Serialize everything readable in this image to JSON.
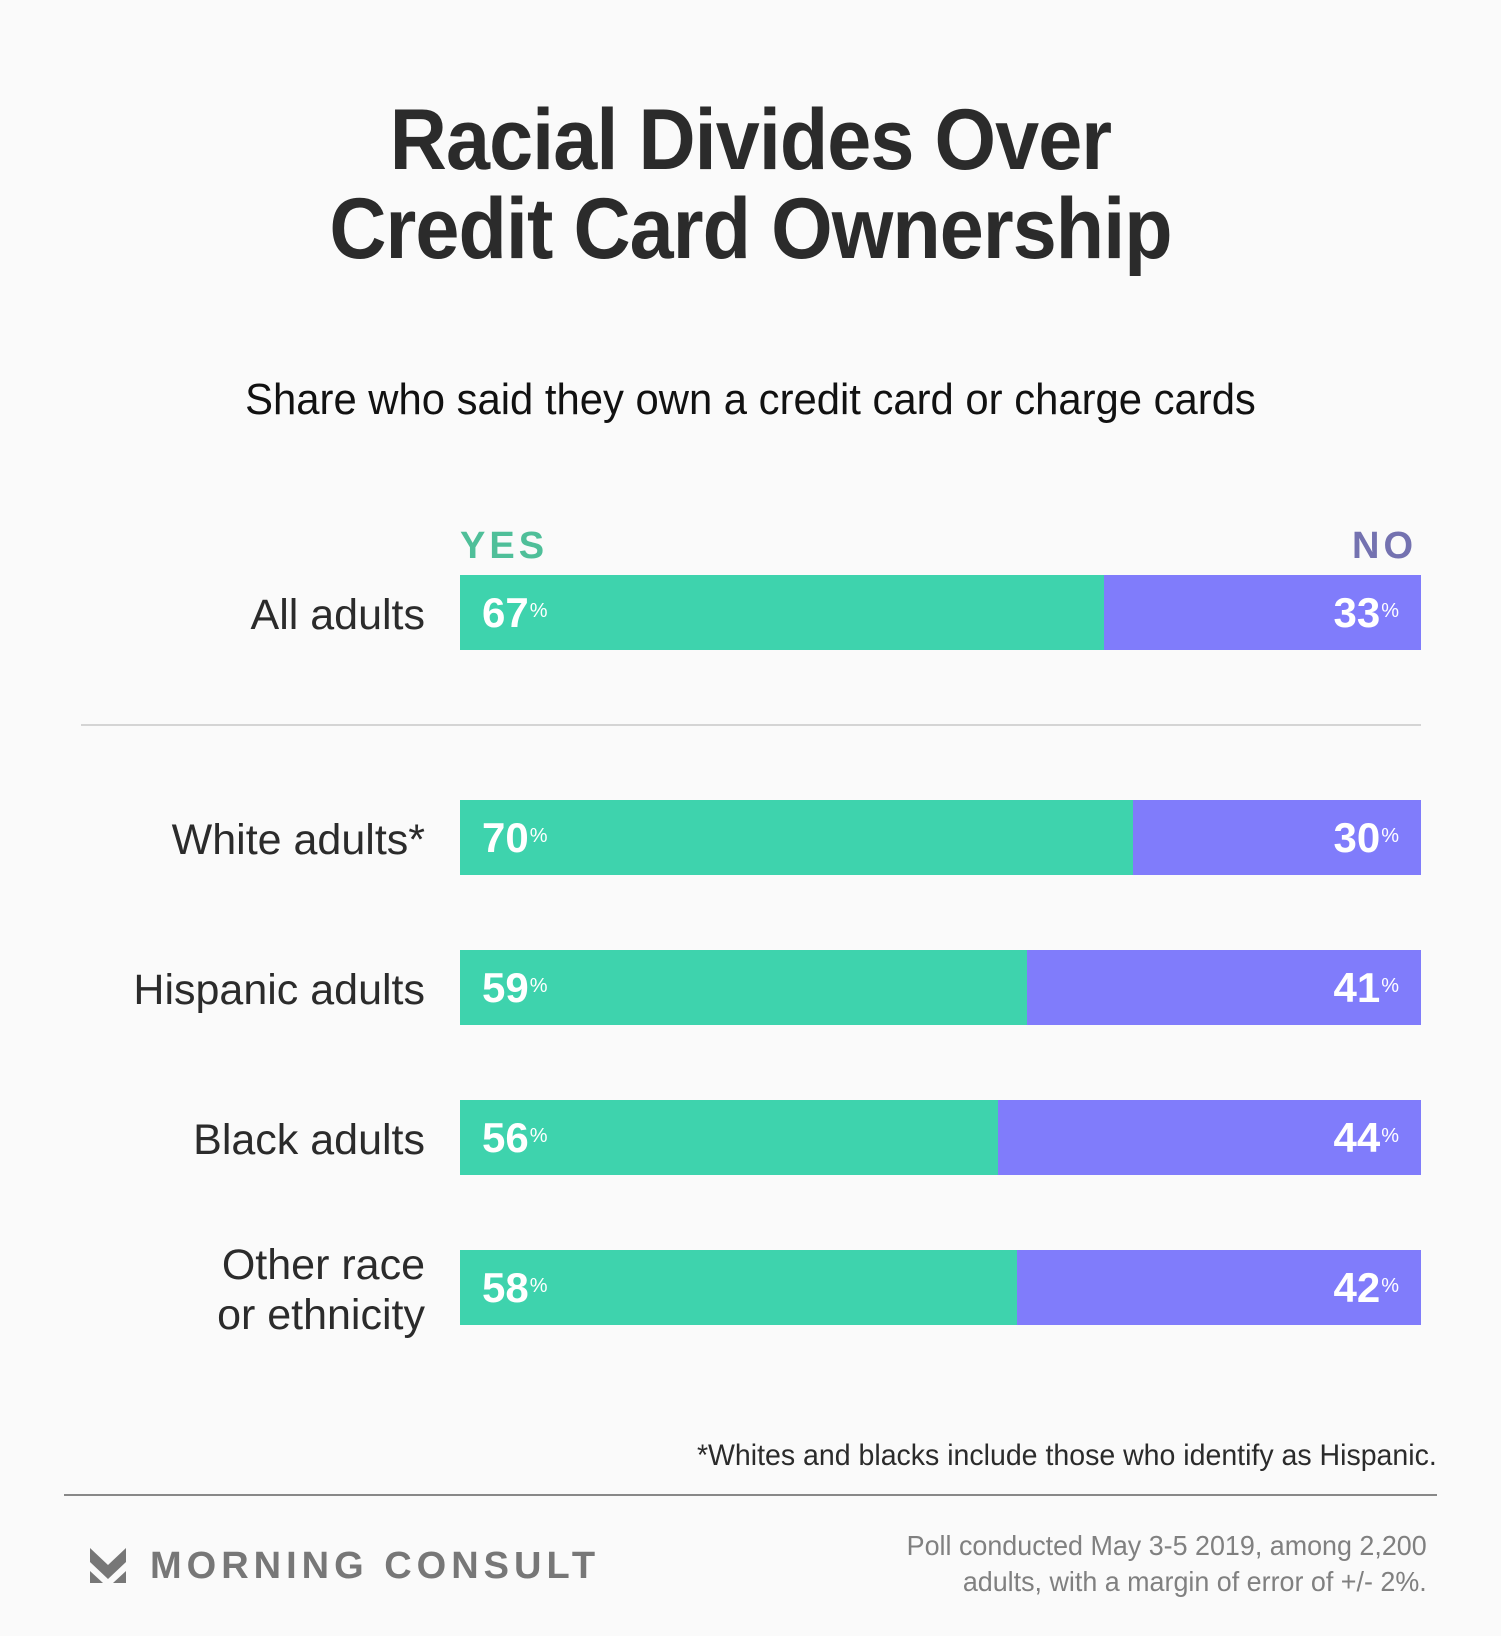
{
  "header": {
    "title_lines": [
      "Racial Divides Over",
      "Credit Card Ownership"
    ],
    "subtitle": "Share who said they own a credit card or charge cards"
  },
  "legend": {
    "yes_label": "YES",
    "no_label": "NO"
  },
  "colors": {
    "yes": "#3ed3ad",
    "no": "#807cfb",
    "yes_label": "#4fbf99",
    "no_label": "#7472b0"
  },
  "chart_data": {
    "type": "bar",
    "orientation": "horizontal",
    "stacked": true,
    "title": "Racial Divides Over Credit Card Ownership",
    "subtitle": "Share who said they own a credit card or charge cards",
    "categories": [
      "All adults",
      "White adults*",
      "Hispanic adults",
      "Black adults",
      "Other race or ethnicity"
    ],
    "category_label_lines": [
      [
        "All adults"
      ],
      [
        "White adults*"
      ],
      [
        "Hispanic adults"
      ],
      [
        "Black adults"
      ],
      [
        "Other race",
        "or ethnicity"
      ]
    ],
    "series": [
      {
        "name": "YES",
        "values": [
          67,
          70,
          59,
          56,
          58
        ],
        "labels": [
          "67",
          "70",
          "59",
          "56",
          "58"
        ]
      },
      {
        "name": "NO",
        "values": [
          33,
          30,
          41,
          44,
          42
        ],
        "labels": [
          "33",
          "30",
          "41",
          "44",
          "42"
        ]
      }
    ],
    "value_suffix": "%",
    "xlim": [
      0,
      100
    ],
    "legend_position": "top",
    "xlabel": "",
    "ylabel": "",
    "grid": false
  },
  "footnote": "*Whites and blacks include those who identify as Hispanic.",
  "footer": {
    "brand": "MORNING CONSULT",
    "brand_icon": "morning-consult-logo-icon",
    "poll_lines": [
      "Poll conducted May 3-5 2019, among 2,200",
      "adults, with a margin of error of +/- 2%."
    ]
  }
}
